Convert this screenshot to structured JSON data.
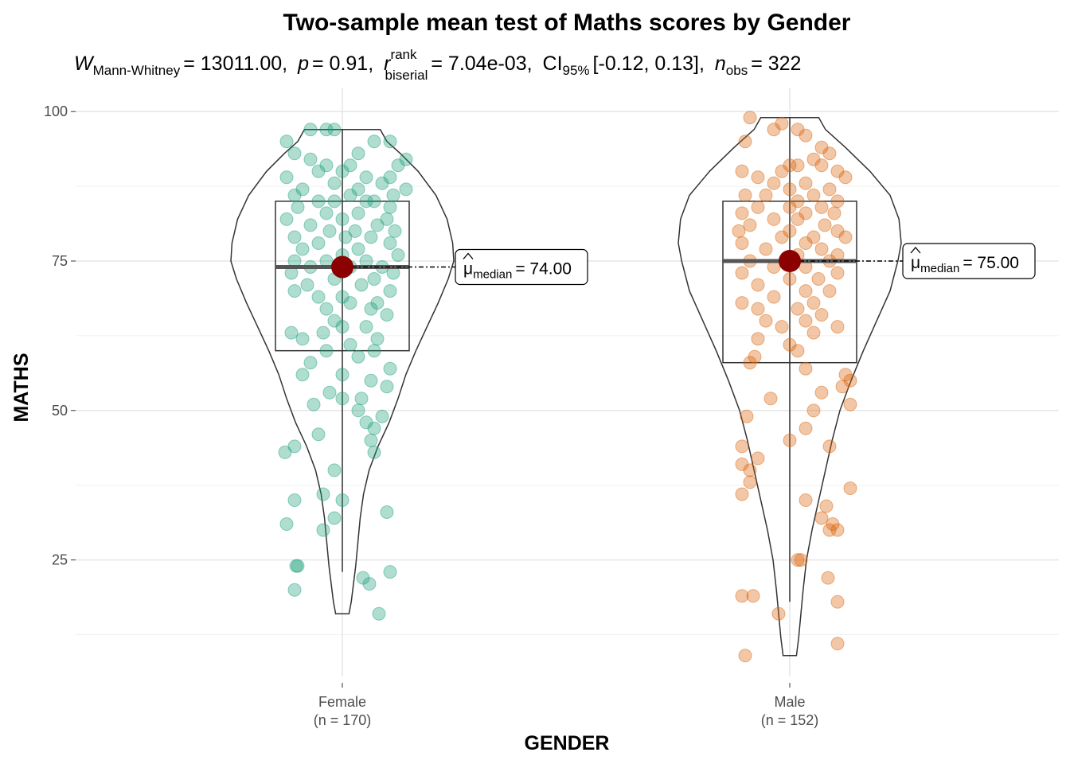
{
  "chart_data": {
    "type": "violin-box-scatter",
    "title": "Two-sample mean test of Maths scores by Gender",
    "subtitle": {
      "w_symbol": "W",
      "w_subscript": "Mann-Whitney",
      "w_value": "= 13011.00,",
      "p_symbol": "p",
      "p_value": "= 0.91,",
      "r_symbol": "r",
      "r_superscript": "rank",
      "r_subscript": "biserial",
      "r_value": "= 7.04e-03,",
      "ci_symbol": "CI",
      "ci_subscript": "95%",
      "ci_value": "[-0.12, 0.13],",
      "n_symbol": "n",
      "n_subscript": "obs",
      "n_value": "= 322"
    },
    "xlabel": "GENDER",
    "ylabel": "MATHS",
    "ylim": [
      8,
      101
    ],
    "yticks": [
      "25",
      "50",
      "75",
      "100"
    ],
    "ytick_values": [
      25,
      50,
      75,
      100
    ],
    "grid": true,
    "legend": "none",
    "groups": [
      {
        "name": "Female",
        "n_label": "(n = 170)",
        "color": "#1b9e77",
        "median": 74,
        "q1": 60,
        "q3": 85,
        "min": 23,
        "max": 97,
        "violin_min": 16,
        "violin_max": 97,
        "label_symbol": "μ",
        "label_subscript": "median",
        "label_value": "= 74.00",
        "violin_profile": [
          [
            16,
            0.06
          ],
          [
            18,
            0.08
          ],
          [
            21,
            0.1
          ],
          [
            24,
            0.12
          ],
          [
            28,
            0.14
          ],
          [
            32,
            0.16
          ],
          [
            36,
            0.19
          ],
          [
            40,
            0.24
          ],
          [
            44,
            0.32
          ],
          [
            48,
            0.42
          ],
          [
            52,
            0.5
          ],
          [
            56,
            0.57
          ],
          [
            60,
            0.66
          ],
          [
            64,
            0.76
          ],
          [
            68,
            0.86
          ],
          [
            72,
            0.95
          ],
          [
            75,
            1.0
          ],
          [
            78,
            0.99
          ],
          [
            82,
            0.94
          ],
          [
            86,
            0.84
          ],
          [
            90,
            0.68
          ],
          [
            93,
            0.52
          ],
          [
            95,
            0.4
          ],
          [
            97,
            0.34
          ]
        ],
        "points": [
          [
            97,
            -0.2
          ],
          [
            97,
            -0.1
          ],
          [
            97,
            -0.05
          ],
          [
            95,
            0.3
          ],
          [
            95,
            0.2
          ],
          [
            95,
            -0.35
          ],
          [
            93,
            -0.3
          ],
          [
            93,
            0.1
          ],
          [
            92,
            -0.2
          ],
          [
            92,
            0.4
          ],
          [
            91,
            0.35
          ],
          [
            91,
            0.05
          ],
          [
            91,
            -0.1
          ],
          [
            90,
            0.0
          ],
          [
            90,
            -0.15
          ],
          [
            89,
            0.3
          ],
          [
            89,
            -0.35
          ],
          [
            89,
            0.15
          ],
          [
            88,
            -0.05
          ],
          [
            88,
            0.25
          ],
          [
            87,
            0.1
          ],
          [
            87,
            -0.25
          ],
          [
            87,
            0.4
          ],
          [
            86,
            -0.3
          ],
          [
            86,
            0.05
          ],
          [
            86,
            0.32
          ],
          [
            85,
            -0.15
          ],
          [
            85,
            0.2
          ],
          [
            85,
            -0.05
          ],
          [
            85,
            0.15
          ],
          [
            84,
            0.3
          ],
          [
            84,
            -0.28
          ],
          [
            83,
            0.1
          ],
          [
            83,
            -0.1
          ],
          [
            82,
            0.28
          ],
          [
            82,
            -0.35
          ],
          [
            82,
            0.0
          ],
          [
            81,
            0.22
          ],
          [
            81,
            -0.2
          ],
          [
            80,
            0.33
          ],
          [
            80,
            -0.08
          ],
          [
            80,
            0.08
          ],
          [
            79,
            -0.3
          ],
          [
            79,
            0.18
          ],
          [
            79,
            0.02
          ],
          [
            78,
            -0.15
          ],
          [
            78,
            0.3
          ],
          [
            77,
            0.1
          ],
          [
            77,
            -0.25
          ],
          [
            76,
            0.0
          ],
          [
            76,
            0.35
          ],
          [
            75,
            -0.3
          ],
          [
            75,
            0.15
          ],
          [
            75,
            -0.1
          ],
          [
            74,
            0.25
          ],
          [
            74,
            -0.2
          ],
          [
            74,
            0.05
          ],
          [
            73,
            0.32
          ],
          [
            73,
            -0.32
          ],
          [
            72,
            -0.05
          ],
          [
            72,
            0.2
          ],
          [
            71,
            0.12
          ],
          [
            71,
            -0.22
          ],
          [
            70,
            0.3
          ],
          [
            70,
            -0.3
          ],
          [
            69,
            0.0
          ],
          [
            69,
            -0.15
          ],
          [
            68,
            0.22
          ],
          [
            68,
            0.05
          ],
          [
            67,
            -0.1
          ],
          [
            67,
            0.18
          ],
          [
            66,
            0.28
          ],
          [
            65,
            -0.05
          ],
          [
            64,
            0.15
          ],
          [
            64,
            0.0
          ],
          [
            63,
            -0.32
          ],
          [
            63,
            -0.12
          ],
          [
            62,
            0.22
          ],
          [
            62,
            -0.25
          ],
          [
            61,
            0.05
          ],
          [
            60,
            0.2
          ],
          [
            60,
            -0.1
          ],
          [
            59,
            0.1
          ],
          [
            58,
            -0.2
          ],
          [
            57,
            0.3
          ],
          [
            56,
            0.0
          ],
          [
            56,
            -0.25
          ],
          [
            55,
            0.18
          ],
          [
            54,
            0.28
          ],
          [
            53,
            -0.08
          ],
          [
            52,
            0.0
          ],
          [
            52,
            0.12
          ],
          [
            51,
            -0.18
          ],
          [
            50,
            0.1
          ],
          [
            49,
            0.25
          ],
          [
            48,
            0.15
          ],
          [
            47,
            0.2
          ],
          [
            46,
            -0.15
          ],
          [
            45,
            0.18
          ],
          [
            44,
            -0.3
          ],
          [
            43,
            0.2
          ],
          [
            43,
            -0.36
          ],
          [
            40,
            -0.05
          ],
          [
            36,
            -0.12
          ],
          [
            35,
            -0.3
          ],
          [
            35,
            0.0
          ],
          [
            33,
            0.28
          ],
          [
            32,
            -0.05
          ],
          [
            31,
            -0.35
          ],
          [
            30,
            -0.12
          ],
          [
            24,
            -0.28
          ],
          [
            24,
            -0.29
          ],
          [
            23,
            0.3
          ],
          [
            22,
            0.13
          ],
          [
            21,
            0.17
          ],
          [
            20,
            -0.3
          ],
          [
            16,
            0.23
          ]
        ]
      },
      {
        "name": "Male",
        "n_label": "(n = 152)",
        "color": "#d95f02",
        "median": 75,
        "q1": 58,
        "q3": 85,
        "min": 18,
        "max": 99,
        "violin_min": 9,
        "violin_max": 99,
        "label_symbol": "μ",
        "label_subscript": "median",
        "label_value": "= 75.00",
        "violin_profile": [
          [
            9,
            0.06
          ],
          [
            12,
            0.08
          ],
          [
            16,
            0.1
          ],
          [
            20,
            0.12
          ],
          [
            25,
            0.15
          ],
          [
            30,
            0.2
          ],
          [
            35,
            0.26
          ],
          [
            40,
            0.32
          ],
          [
            45,
            0.38
          ],
          [
            50,
            0.45
          ],
          [
            55,
            0.55
          ],
          [
            60,
            0.66
          ],
          [
            65,
            0.78
          ],
          [
            70,
            0.9
          ],
          [
            75,
            0.97
          ],
          [
            78,
            1.0
          ],
          [
            82,
            0.98
          ],
          [
            86,
            0.9
          ],
          [
            90,
            0.72
          ],
          [
            94,
            0.5
          ],
          [
            97,
            0.32
          ],
          [
            99,
            0.26
          ]
        ],
        "points": [
          [
            99,
            -0.25
          ],
          [
            98,
            -0.05
          ],
          [
            97,
            0.05
          ],
          [
            97,
            -0.1
          ],
          [
            96,
            0.1
          ],
          [
            95,
            -0.28
          ],
          [
            94,
            0.2
          ],
          [
            93,
            0.25
          ],
          [
            92,
            0.15
          ],
          [
            91,
            0.05
          ],
          [
            91,
            0.0
          ],
          [
            91,
            0.2
          ],
          [
            90,
            -0.3
          ],
          [
            90,
            0.3
          ],
          [
            90,
            -0.05
          ],
          [
            89,
            0.35
          ],
          [
            89,
            -0.2
          ],
          [
            88,
            0.1
          ],
          [
            88,
            -0.1
          ],
          [
            87,
            0.0
          ],
          [
            87,
            0.25
          ],
          [
            86,
            -0.28
          ],
          [
            86,
            0.15
          ],
          [
            86,
            -0.15
          ],
          [
            85,
            0.3
          ],
          [
            85,
            0.05
          ],
          [
            84,
            -0.2
          ],
          [
            84,
            0.2
          ],
          [
            84,
            0.0
          ],
          [
            83,
            0.1
          ],
          [
            83,
            -0.3
          ],
          [
            83,
            0.28
          ],
          [
            82,
            0.05
          ],
          [
            82,
            -0.1
          ],
          [
            81,
            0.22
          ],
          [
            81,
            -0.25
          ],
          [
            80,
            0.0
          ],
          [
            80,
            0.3
          ],
          [
            80,
            -0.32
          ],
          [
            79,
            0.15
          ],
          [
            79,
            0.35
          ],
          [
            79,
            -0.05
          ],
          [
            78,
            0.1
          ],
          [
            78,
            -0.3
          ],
          [
            77,
            0.2
          ],
          [
            77,
            -0.15
          ],
          [
            76,
            0.05
          ],
          [
            76,
            0.3
          ],
          [
            75,
            -0.25
          ],
          [
            75,
            0.25
          ],
          [
            74,
            0.1
          ],
          [
            74,
            -0.1
          ],
          [
            73,
            0.3
          ],
          [
            73,
            -0.3
          ],
          [
            72,
            0.0
          ],
          [
            72,
            0.18
          ],
          [
            71,
            -0.2
          ],
          [
            70,
            0.1
          ],
          [
            70,
            0.25
          ],
          [
            69,
            -0.1
          ],
          [
            68,
            0.15
          ],
          [
            68,
            -0.3
          ],
          [
            67,
            0.05
          ],
          [
            67,
            -0.2
          ],
          [
            66,
            0.2
          ],
          [
            65,
            -0.15
          ],
          [
            65,
            0.1
          ],
          [
            64,
            0.3
          ],
          [
            64,
            -0.05
          ],
          [
            63,
            0.15
          ],
          [
            62,
            -0.2
          ],
          [
            61,
            0.0
          ],
          [
            60,
            0.05
          ],
          [
            59,
            -0.22
          ],
          [
            58,
            -0.25
          ],
          [
            57,
            0.1
          ],
          [
            56,
            0.35
          ],
          [
            55,
            0.38
          ],
          [
            54,
            0.33
          ],
          [
            53,
            0.2
          ],
          [
            52,
            -0.12
          ],
          [
            51,
            0.38
          ],
          [
            50,
            0.15
          ],
          [
            49,
            -0.27
          ],
          [
            47,
            0.1
          ],
          [
            45,
            0.0
          ],
          [
            44,
            -0.3
          ],
          [
            44,
            0.25
          ],
          [
            42,
            -0.2
          ],
          [
            41,
            -0.3
          ],
          [
            40,
            -0.25
          ],
          [
            38,
            -0.25
          ],
          [
            37,
            0.38
          ],
          [
            36,
            -0.3
          ],
          [
            35,
            0.1
          ],
          [
            34,
            0.23
          ],
          [
            32,
            0.2
          ],
          [
            31,
            0.27
          ],
          [
            30,
            0.25
          ],
          [
            30,
            0.3
          ],
          [
            25,
            0.05
          ],
          [
            25,
            0.07
          ],
          [
            22,
            0.24
          ],
          [
            19,
            -0.3
          ],
          [
            19,
            -0.23
          ],
          [
            18,
            0.3
          ],
          [
            16,
            -0.07
          ],
          [
            11,
            0.3
          ],
          [
            9,
            -0.28
          ]
        ]
      }
    ]
  }
}
